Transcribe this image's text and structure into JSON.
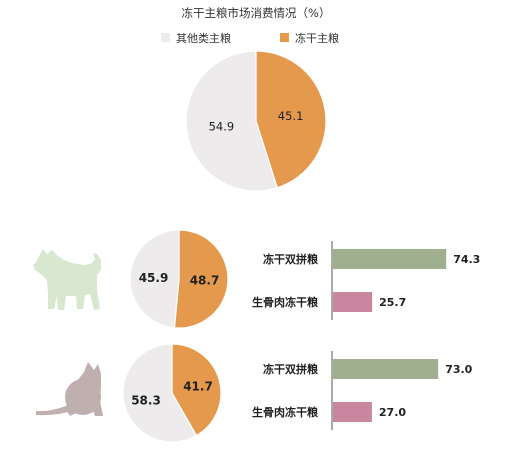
{
  "colors": {
    "orange": "#E5994D",
    "gray": "#EDEBEC",
    "green": "#A0B08E",
    "pink": "#C8879F",
    "dog": "#D7E7D0",
    "cat": "#BFAFAF"
  },
  "chart_data": [
    {
      "type": "pie",
      "title": "冻干主粮市场消费情况（%）",
      "legend": [
        {
          "label": "其他类主粮",
          "color": "#EDEBEC"
        },
        {
          "label": "冻干主粮",
          "color": "#E5994D"
        }
      ],
      "legend_placement": "top",
      "slices": [
        {
          "label": "冻干主粮",
          "value": 45.1,
          "display": "45.1"
        },
        {
          "label": "其他类主粮",
          "value": 54.9,
          "display": "54.9"
        }
      ]
    },
    {
      "type": "pie",
      "icon": "dog-icon",
      "slices": [
        {
          "label": "冻干主粮",
          "value": 48.7,
          "display": "48.7"
        },
        {
          "label": "其他类主粮",
          "value": 45.9,
          "display": "45.9"
        }
      ]
    },
    {
      "type": "bar",
      "orientation": "horizontal",
      "icon": "dog-icon",
      "categories": [
        "冻干双拼粮",
        "生骨肉冻干粮"
      ],
      "values": [
        74.3,
        25.7
      ],
      "labels": [
        "74.3",
        "25.7"
      ],
      "xlim": [
        0,
        100
      ]
    },
    {
      "type": "pie",
      "icon": "cat-icon",
      "slices": [
        {
          "label": "冻干主粮",
          "value": 41.7,
          "display": "41.7"
        },
        {
          "label": "其他类主粮",
          "value": 58.3,
          "display": "58.3"
        }
      ]
    },
    {
      "type": "bar",
      "orientation": "horizontal",
      "icon": "cat-icon",
      "categories": [
        "冻干双拼粮",
        "生骨肉冻干粮"
      ],
      "values": [
        73.0,
        27.0
      ],
      "labels": [
        "73.0",
        "27.0"
      ],
      "xlim": [
        0,
        100
      ]
    }
  ]
}
